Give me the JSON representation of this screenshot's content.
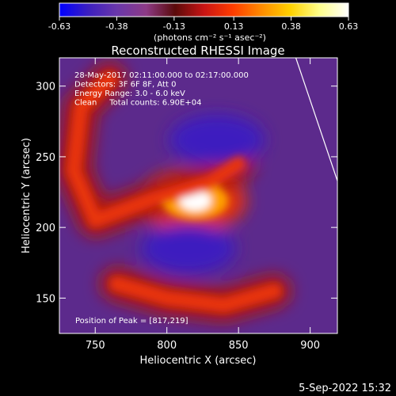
{
  "colorbar": {
    "tick_labels": [
      "-0.63",
      "-0.38",
      "-0.13",
      "0.13",
      "0.38",
      "0.63"
    ],
    "ticks": [
      -0.63,
      -0.38,
      -0.13,
      0.13,
      0.38,
      0.63
    ],
    "range": [
      -0.63,
      0.63
    ],
    "unit_label": "(photons cm⁻² s⁻¹ asec⁻²)",
    "stops": [
      "#0000ff",
      "#3c1fbf",
      "#6a37aa",
      "#8d3a86",
      "#5a0a0a",
      "#c81414",
      "#ff3c00",
      "#ff8c00",
      "#ffd200",
      "#ffff8c",
      "#ffffff"
    ]
  },
  "chart_data": {
    "type": "heatmap",
    "title": "Reconstructed RHESSI Image",
    "xlabel": "Heliocentric X (arcsec)",
    "ylabel": "Heliocentric Y (arcsec)",
    "xlim": [
      725,
      919
    ],
    "ylim": [
      125,
      320
    ],
    "x_ticks": [
      750,
      800,
      850,
      900
    ],
    "y_ticks": [
      150,
      200,
      250,
      300
    ],
    "x_tick_labels": [
      "750",
      "800",
      "850",
      "900"
    ],
    "y_tick_labels": [
      "150",
      "200",
      "250",
      "300"
    ],
    "annotations": [
      "28-May-2017 02:11:00.000 to 02:17:00.000",
      "Detectors: 3F 6F 8F, Att 0",
      "Energy Range: 3.0 - 6.0 keV",
      "Clean     Total counts: 6.90E+04"
    ],
    "peak_label": "Position of Peak = [817,219]",
    "peak": {
      "x": 817,
      "y": 219,
      "value": 0.63
    },
    "features": [
      {
        "kind": "peak",
        "x": 817,
        "y": 219,
        "value": 0.63
      },
      {
        "kind": "positive-arc",
        "path_x": [
          760,
          740,
          735,
          750,
          790,
          830,
          850
        ],
        "path_y": [
          305,
          285,
          240,
          205,
          220,
          232,
          245
        ],
        "value": 0.3
      },
      {
        "kind": "positive-arc",
        "path_x": [
          765,
          800,
          840,
          875
        ],
        "path_y": [
          160,
          150,
          145,
          155
        ],
        "value": 0.3
      },
      {
        "kind": "negative-lobe",
        "x": 835,
        "y": 262,
        "value": -0.45
      },
      {
        "kind": "negative-lobe",
        "x": 815,
        "y": 185,
        "value": -0.5
      }
    ],
    "limb_line": {
      "x": [
        890,
        919
      ],
      "y": [
        320,
        233
      ]
    }
  },
  "footer": {
    "date": "5-Sep-2022 15:32"
  }
}
